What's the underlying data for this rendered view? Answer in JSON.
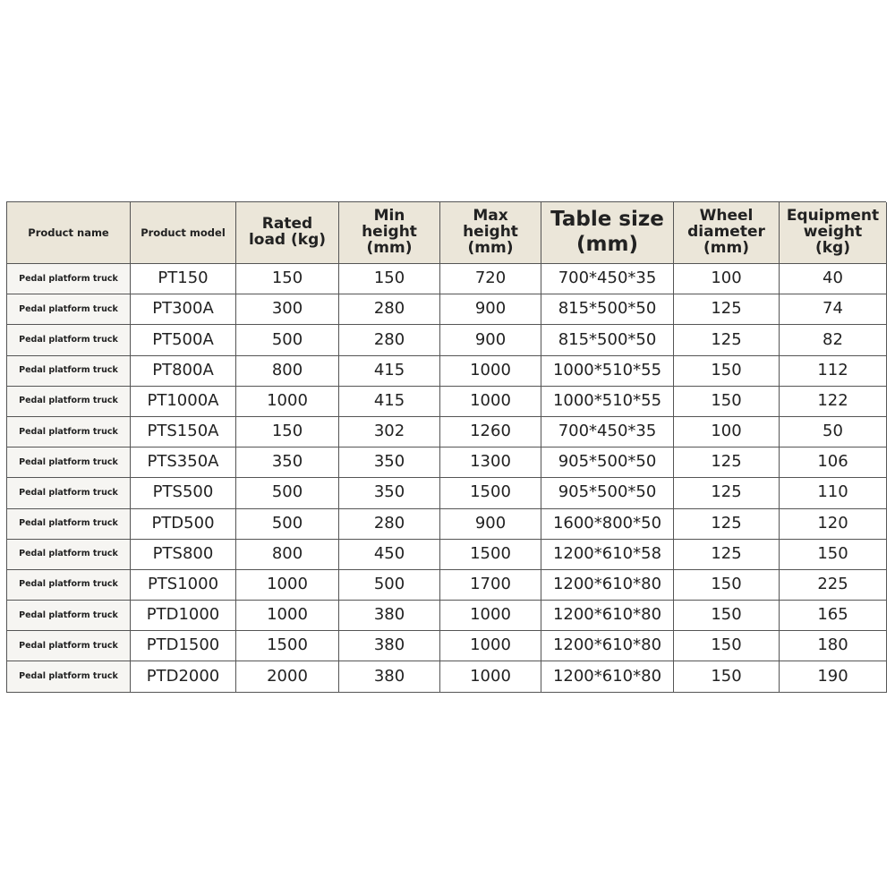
{
  "table": {
    "header": [
      [
        "Product name"
      ],
      [
        "Product model"
      ],
      [
        "Rated",
        "load (kg)"
      ],
      [
        "Min",
        "height",
        "(mm)"
      ],
      [
        "Max",
        "height",
        "(mm)"
      ],
      [
        "Table size",
        "(mm)"
      ],
      [
        "Wheel",
        "diameter",
        "(mm)"
      ],
      [
        "Equipment",
        "weight",
        "(kg)"
      ]
    ],
    "rows": [
      [
        "Pedal platform truck",
        "PT150",
        "150",
        "150",
        "720",
        "700*450*35",
        "100",
        "40"
      ],
      [
        "Pedal platform truck",
        "PT300A",
        "300",
        "280",
        "900",
        "815*500*50",
        "125",
        "74"
      ],
      [
        "Pedal platform truck",
        "PT500A",
        "500",
        "280",
        "900",
        "815*500*50",
        "125",
        "82"
      ],
      [
        "Pedal platform truck",
        "PT800A",
        "800",
        "415",
        "1000",
        "1000*510*55",
        "150",
        "112"
      ],
      [
        "Pedal platform truck",
        "PT1000A",
        "1000",
        "415",
        "1000",
        "1000*510*55",
        "150",
        "122"
      ],
      [
        "Pedal platform truck",
        "PTS150A",
        "150",
        "302",
        "1260",
        "700*450*35",
        "100",
        "50"
      ],
      [
        "Pedal platform truck",
        "PTS350A",
        "350",
        "350",
        "1300",
        "905*500*50",
        "125",
        "106"
      ],
      [
        "Pedal platform truck",
        "PTS500",
        "500",
        "350",
        "1500",
        "905*500*50",
        "125",
        "110"
      ],
      [
        "Pedal platform truck",
        "PTD500",
        "500",
        "280",
        "900",
        "1600*800*50",
        "125",
        "120"
      ],
      [
        "Pedal platform truck",
        "PTS800",
        "800",
        "450",
        "1500",
        "1200*610*58",
        "125",
        "150"
      ],
      [
        "Pedal platform truck",
        "PTS1000",
        "1000",
        "500",
        "1700",
        "1200*610*80",
        "150",
        "225"
      ],
      [
        "Pedal platform truck",
        "PTD1000",
        "1000",
        "380",
        "1000",
        "1200*610*80",
        "150",
        "165"
      ],
      [
        "Pedal platform truck",
        "PTD1500",
        "1500",
        "380",
        "1000",
        "1200*610*80",
        "150",
        "180"
      ],
      [
        "Pedal platform truck",
        "PTD2000",
        "2000",
        "380",
        "1000",
        "1200*610*80",
        "150",
        "190"
      ]
    ]
  }
}
